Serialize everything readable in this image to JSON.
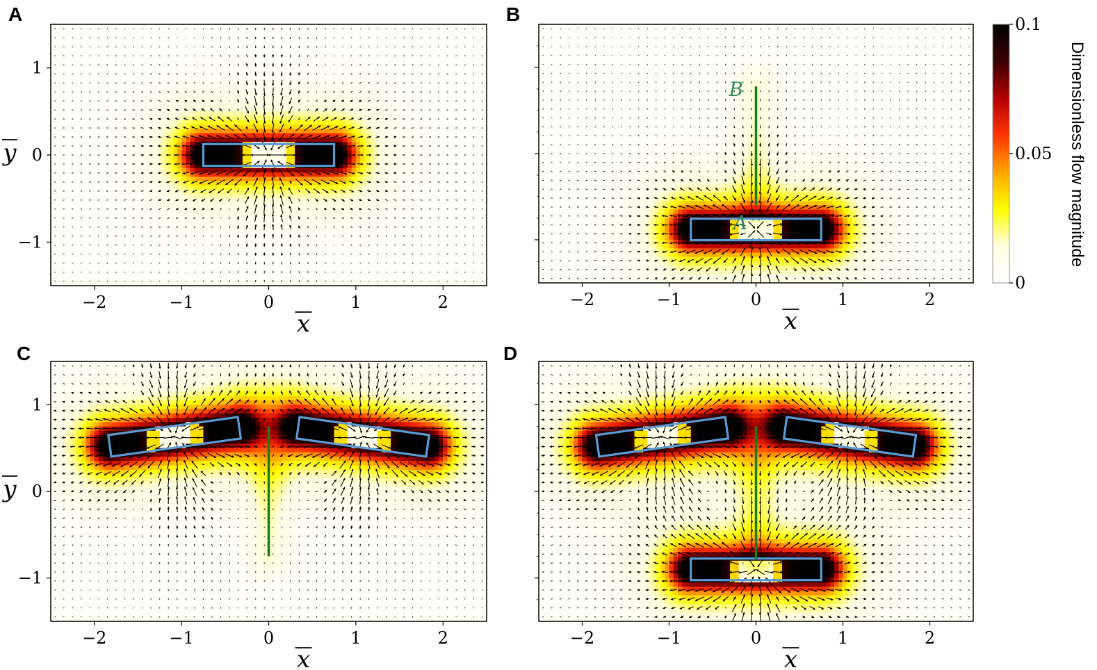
{
  "colors": {
    "frame": "#000000",
    "flagellum": "#1b7a1b",
    "swimmer_outline": "#5b9bd5",
    "arrow": "#000000",
    "ab_label": "#2e8b57",
    "colormap": [
      "#ffffff",
      "#fffde0",
      "#ffff00",
      "#ffa500",
      "#ff3300",
      "#b30000",
      "#3a0000",
      "#000000"
    ]
  },
  "colorbar": {
    "title": "Dimensionless flow magnitude",
    "ticks": [
      "0",
      "0.05",
      "0.1"
    ],
    "range": [
      0,
      0.1
    ]
  },
  "axis_labels": {
    "x": "x",
    "y": "y"
  },
  "chart_data": [
    {
      "panel": "A",
      "type": "heatmap",
      "xlim": [
        -2.5,
        2.5
      ],
      "ylim": [
        -1.5,
        1.5
      ],
      "xticks": [
        "−2",
        "−1",
        "0",
        "1",
        "2"
      ],
      "yticks": [
        "1",
        "0",
        "−1"
      ],
      "show_xticklabels": true,
      "show_yticklabels": true,
      "show_xlabel": true,
      "show_ylabel": true,
      "swimmers": [
        {
          "x": 0,
          "y": 0,
          "length": 1.5,
          "width": 0.25,
          "angle_deg": 0
        }
      ],
      "flagellum": null,
      "annotations": []
    },
    {
      "panel": "B",
      "type": "heatmap",
      "xlim": [
        -2.5,
        2.5
      ],
      "ylim": [
        -1.5,
        1.5
      ],
      "xticks": [
        "−2",
        "−1",
        "0",
        "1",
        "2"
      ],
      "yticks": [],
      "show_xticklabels": true,
      "show_yticklabels": false,
      "show_xlabel": true,
      "show_ylabel": false,
      "swimmers": [
        {
          "x": 0,
          "y": -0.88,
          "length": 1.5,
          "width": 0.25,
          "angle_deg": 0
        }
      ],
      "flagellum": {
        "x": 0,
        "y0": -0.6,
        "y1": 0.78
      },
      "annotations": [
        {
          "text": "A",
          "x": -0.1,
          "y": -0.8
        },
        {
          "text": "B",
          "x": -0.15,
          "y": 0.75
        }
      ]
    },
    {
      "panel": "C",
      "type": "heatmap",
      "xlim": [
        -2.5,
        2.5
      ],
      "ylim": [
        -1.5,
        1.5
      ],
      "xticks": [
        "−2",
        "−1",
        "0",
        "1",
        "2"
      ],
      "yticks": [
        "1",
        "0",
        "−1"
      ],
      "show_xticklabels": true,
      "show_yticklabels": true,
      "show_xlabel": true,
      "show_ylabel": true,
      "swimmers": [
        {
          "x": -1.08,
          "y": 0.63,
          "length": 1.5,
          "width": 0.25,
          "angle_deg": 8
        },
        {
          "x": 1.08,
          "y": 0.63,
          "length": 1.5,
          "width": 0.25,
          "angle_deg": -8
        }
      ],
      "flagellum": {
        "x": 0,
        "y0": -0.75,
        "y1": 0.75
      },
      "annotations": []
    },
    {
      "panel": "D",
      "type": "heatmap",
      "xlim": [
        -2.5,
        2.5
      ],
      "ylim": [
        -1.5,
        1.5
      ],
      "xticks": [
        "−2",
        "−1",
        "0",
        "1",
        "2"
      ],
      "yticks": [],
      "show_xticklabels": true,
      "show_yticklabels": false,
      "show_xlabel": true,
      "show_ylabel": false,
      "swimmers": [
        {
          "x": -1.08,
          "y": 0.63,
          "length": 1.5,
          "width": 0.25,
          "angle_deg": 8
        },
        {
          "x": 1.08,
          "y": 0.63,
          "length": 1.5,
          "width": 0.25,
          "angle_deg": -8
        },
        {
          "x": 0,
          "y": -0.9,
          "length": 1.5,
          "width": 0.25,
          "angle_deg": 0
        }
      ],
      "flagellum": {
        "x": 0,
        "y0": -0.78,
        "y1": 0.75
      },
      "annotations": []
    }
  ]
}
